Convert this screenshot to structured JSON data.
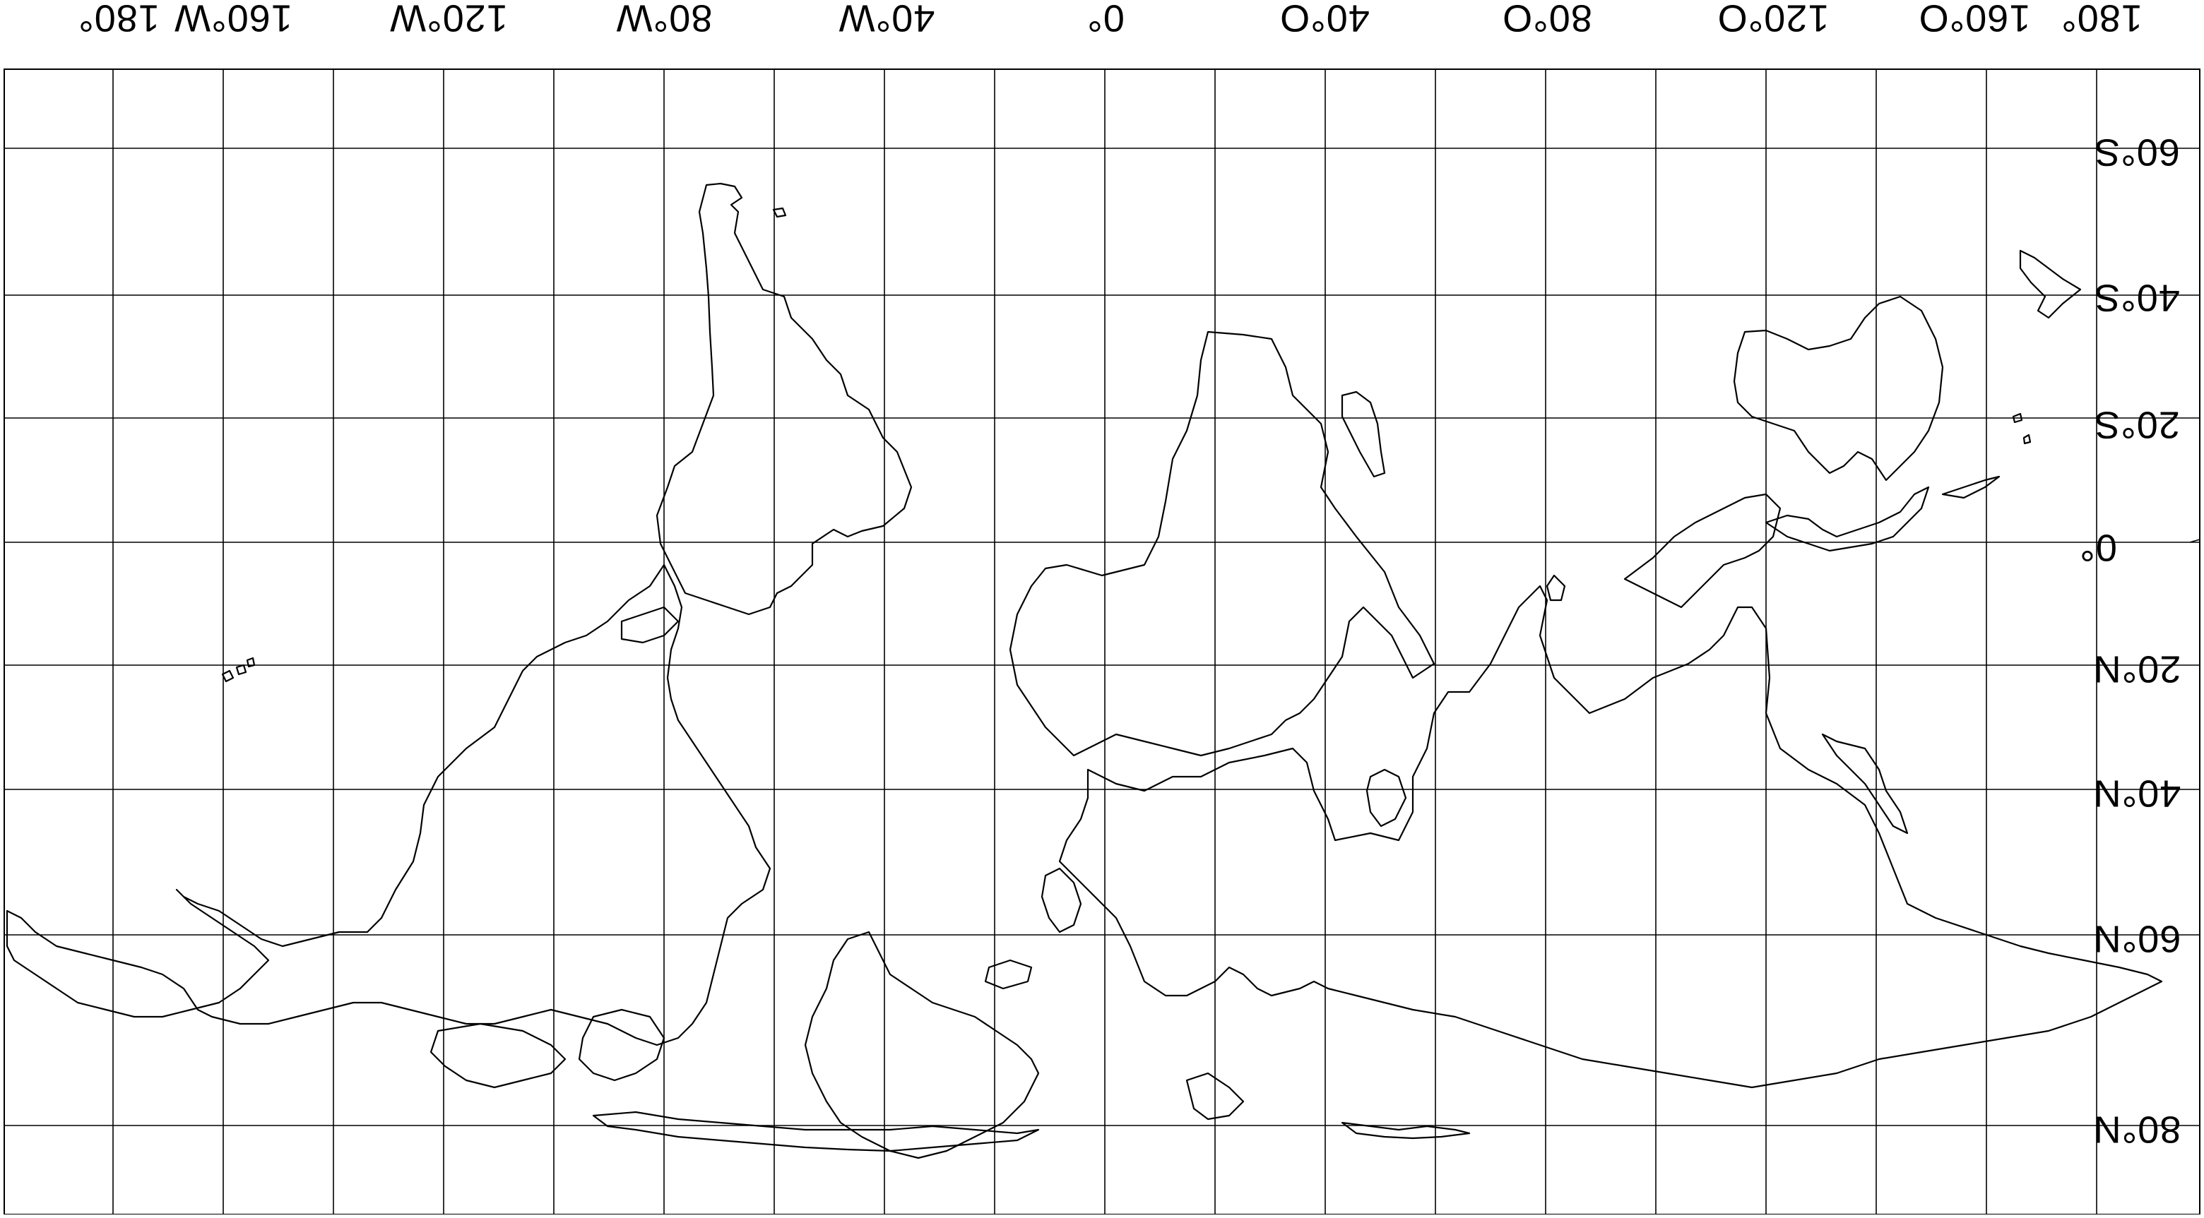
{
  "map": {
    "projection_note_visible": false,
    "orientation": "south-up, mirrored (labels rendered rotated 180 degrees)",
    "line_color": "#000000",
    "background_color": "#ffffff",
    "longitude_labels": [
      "180°",
      "160°W",
      "120°W",
      "80°W",
      "40°W",
      "0°",
      "40°O",
      "80°O",
      "120°O",
      "160°O",
      "180°"
    ],
    "latitude_labels": [
      "60°S",
      "40°S",
      "20°S",
      "0°",
      "20°N",
      "40°N",
      "60°N",
      "80°N"
    ],
    "icons": [
      "coastline-map"
    ]
  }
}
